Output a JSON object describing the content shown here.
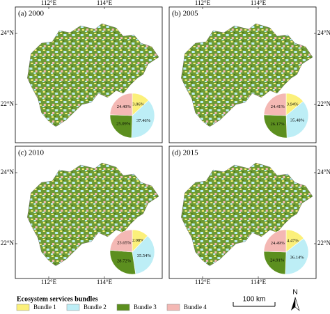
{
  "panels": [
    {
      "label": "(a) 2000",
      "lon_labels": [
        "112°E",
        "114°E"
      ],
      "lat_labels": [
        "24°N",
        "22°N"
      ]
    },
    {
      "label": "(b) 2005",
      "lon_labels": [
        "112°E",
        "114°E"
      ],
      "lat_labels": [
        "24°N",
        "22°N"
      ]
    },
    {
      "label": "(c) 2010",
      "lon_labels": [
        "112°E",
        "114°E"
      ],
      "lat_labels": [
        "24°N",
        "22°N"
      ]
    },
    {
      "label": "(d) 2015",
      "lon_labels": [
        "112°E",
        "114°E"
      ],
      "lat_labels": [
        "24°N",
        "22°N"
      ]
    }
  ],
  "legend": {
    "title": "Ecosystem services bundles",
    "items": [
      "Bundle 1",
      "Bundle 2",
      "Bundle 3",
      "Bundle 4"
    ],
    "colors": [
      "#fbf07a",
      "#bdeef6",
      "#5c8f1f",
      "#f4b8b4"
    ]
  },
  "scale_bar": "100 km",
  "north": "N",
  "chart_data": [
    {
      "type": "pie",
      "values": [
        13.06,
        37.46,
        25.09,
        24.4
      ],
      "value_labels": [
        "13.06%",
        "37.46%",
        "25.09%",
        "24.40%"
      ]
    },
    {
      "type": "pie",
      "values": [
        13.94,
        35.48,
        26.17,
        24.41
      ],
      "value_labels": [
        "13.94%",
        "35.48%",
        "26.17%",
        "24.41%"
      ]
    },
    {
      "type": "pie",
      "values": [
        12.08,
        35.54,
        28.72,
        23.65
      ],
      "value_labels": [
        "12.08%",
        "35.54%",
        "28.72%",
        "23.65%"
      ]
    },
    {
      "type": "pie",
      "values": [
        14.47,
        36.14,
        24.91,
        24.49
      ],
      "value_labels": [
        "14.47%",
        "36.14%",
        "24.91%",
        "24.49%"
      ]
    }
  ]
}
